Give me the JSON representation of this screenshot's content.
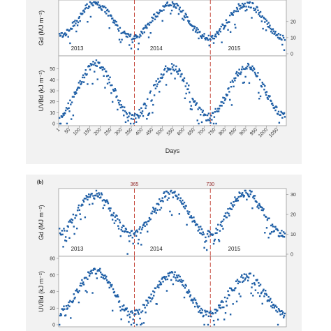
{
  "chart_data": [
    {
      "type": "scatter",
      "panel": "a-top",
      "ylabel": "Gd (MJ m⁻²)",
      "x_range": [
        1,
        1095
      ],
      "y_range": [
        0,
        32
      ],
      "right_ticks": [
        "20",
        "10",
        "0"
      ],
      "year_labels": [
        "2013",
        "2014",
        "2015"
      ],
      "year_label_x": [
        90,
        470,
        845
      ],
      "vlines": [
        365,
        730
      ],
      "series": [
        {
          "color": "#1f5fa6",
          "seasonal_curve": {
            "x": [
              1,
              173,
              356,
              538,
              720,
              902,
              1085
            ],
            "y": [
              11,
              31,
              10,
              31,
              10,
              31,
              10
            ]
          }
        }
      ]
    },
    {
      "type": "scatter",
      "panel": "a-bottom",
      "ylabel": "UVBd (kJ m⁻²)",
      "x_range": [
        1,
        1095
      ],
      "y_range": [
        0,
        60
      ],
      "y_ticks": [
        "50",
        "40",
        "30",
        "20",
        "10",
        "0"
      ],
      "x_ticks": [
        "1",
        "50",
        "100",
        "150",
        "200",
        "250",
        "300",
        "350",
        "400",
        "450",
        "500",
        "550",
        "600",
        "650",
        "700",
        "750",
        "800",
        "850",
        "900",
        "950",
        "1000",
        "1050"
      ],
      "xlabel": "Days",
      "vlines": [
        365,
        730
      ],
      "series": [
        {
          "color": "#1f5fa6",
          "seasonal_curve": {
            "x": [
              1,
              180,
              356,
              545,
              720,
              905,
              1085
            ],
            "y": [
              8,
              55,
              6,
              52,
              6,
              52,
              8
            ]
          }
        }
      ]
    },
    {
      "type": "scatter",
      "panel": "b-top",
      "panel_label": "(b)",
      "ylabel": "Gd (MJ m⁻²)",
      "x_range": [
        1,
        1095
      ],
      "y_range": [
        0,
        32
      ],
      "right_ticks": [
        "30",
        "20",
        "10",
        "0"
      ],
      "year_labels": [
        "2013",
        "2014",
        "2015"
      ],
      "year_label_x": [
        90,
        470,
        845
      ],
      "vlines": [
        365,
        730
      ],
      "vline_labels": [
        "365",
        "730"
      ],
      "series": [
        {
          "color": "#1f5fa6",
          "seasonal_curve": {
            "x": [
              1,
              173,
              356,
              538,
              720,
              902,
              1085
            ],
            "y": [
              11,
              31,
              10,
              31,
              10,
              31,
              10
            ]
          }
        }
      ]
    },
    {
      "type": "scatter",
      "panel": "b-bottom",
      "ylabel": "UVBd (kJ m⁻²)",
      "x_range": [
        1,
        1095
      ],
      "y_range": [
        0,
        80
      ],
      "y_ticks": [
        "80",
        "60",
        "40",
        "20",
        "0"
      ],
      "vlines": [
        365,
        730
      ],
      "series": [
        {
          "color": "#1f5fa6",
          "seasonal_curve": {
            "x": [
              1,
              180,
              356,
              545,
              720,
              905,
              1085
            ],
            "y": [
              15,
              65,
              12,
              60,
              12,
              58,
              15
            ]
          }
        }
      ]
    }
  ]
}
